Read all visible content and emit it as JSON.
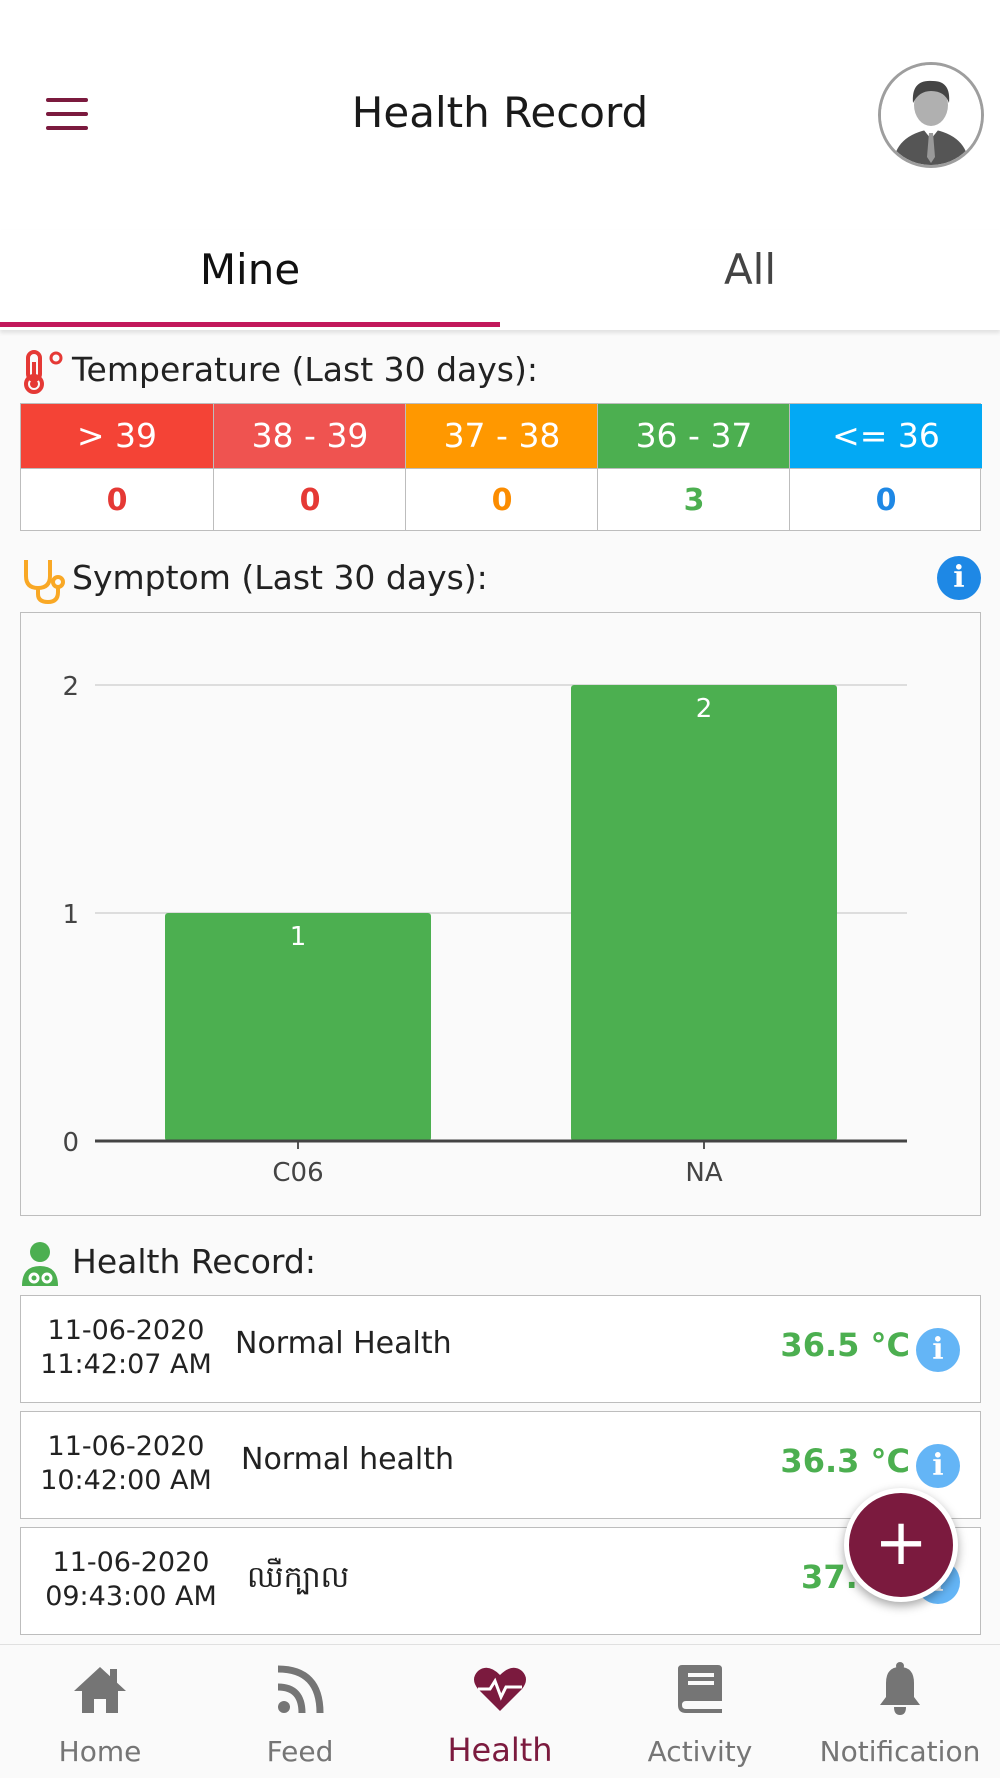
{
  "appbar": {
    "title": "Health Record"
  },
  "tabs": [
    {
      "label": "Mine",
      "active": true
    },
    {
      "label": "All",
      "active": false
    }
  ],
  "temperature": {
    "heading": "Temperature (Last 30 days):",
    "ranges": [
      {
        "label": "> 39",
        "count": "0",
        "color": "#f44336",
        "text_color": "#e53935"
      },
      {
        "label": "38 - 39",
        "count": "0",
        "color": "#ef5350",
        "text_color": "#e53935"
      },
      {
        "label": "37 - 38",
        "count": "0",
        "color": "#ff9800",
        "text_color": "#fb8c00"
      },
      {
        "label": "36 - 37",
        "count": "3",
        "color": "#4caf50",
        "text_color": "#4caf50"
      },
      {
        "label": "<= 36",
        "count": "0",
        "color": "#03a9f4",
        "text_color": "#1e88e5"
      }
    ]
  },
  "symptom": {
    "heading": "Symptom (Last 30 days):",
    "info_icon": "info-icon"
  },
  "chart_data": {
    "type": "bar",
    "categories": [
      "C06",
      "NA"
    ],
    "values": [
      1,
      2
    ],
    "ylim": [
      0,
      2
    ],
    "yticks": [
      0,
      1,
      2
    ],
    "bar_color": "#4caf50",
    "data_labels": true,
    "grid": true
  },
  "health_record": {
    "heading": "Health Record:",
    "rows": [
      {
        "date": "11-06-2020",
        "time": "11:42:07 AM",
        "desc": "Normal Health",
        "temp": "36.5 °C"
      },
      {
        "date": "11-06-2020",
        "time": "10:42:00 AM",
        "desc": "Normal health",
        "temp": "36.3 °C"
      },
      {
        "date": "11-06-2020",
        "time": "09:43:00 AM",
        "desc": "ឈឺក្បាល",
        "temp": "37.0"
      }
    ]
  },
  "fab": {
    "label": "+"
  },
  "bottom_nav": [
    {
      "label": "Home",
      "icon": "home-icon",
      "active": false
    },
    {
      "label": "Feed",
      "icon": "rss-feed-icon",
      "active": false
    },
    {
      "label": "Health",
      "icon": "heartbeat-icon",
      "active": true
    },
    {
      "label": "Activity",
      "icon": "book-icon",
      "active": false
    },
    {
      "label": "Notification",
      "icon": "bell-icon",
      "active": false
    }
  ]
}
